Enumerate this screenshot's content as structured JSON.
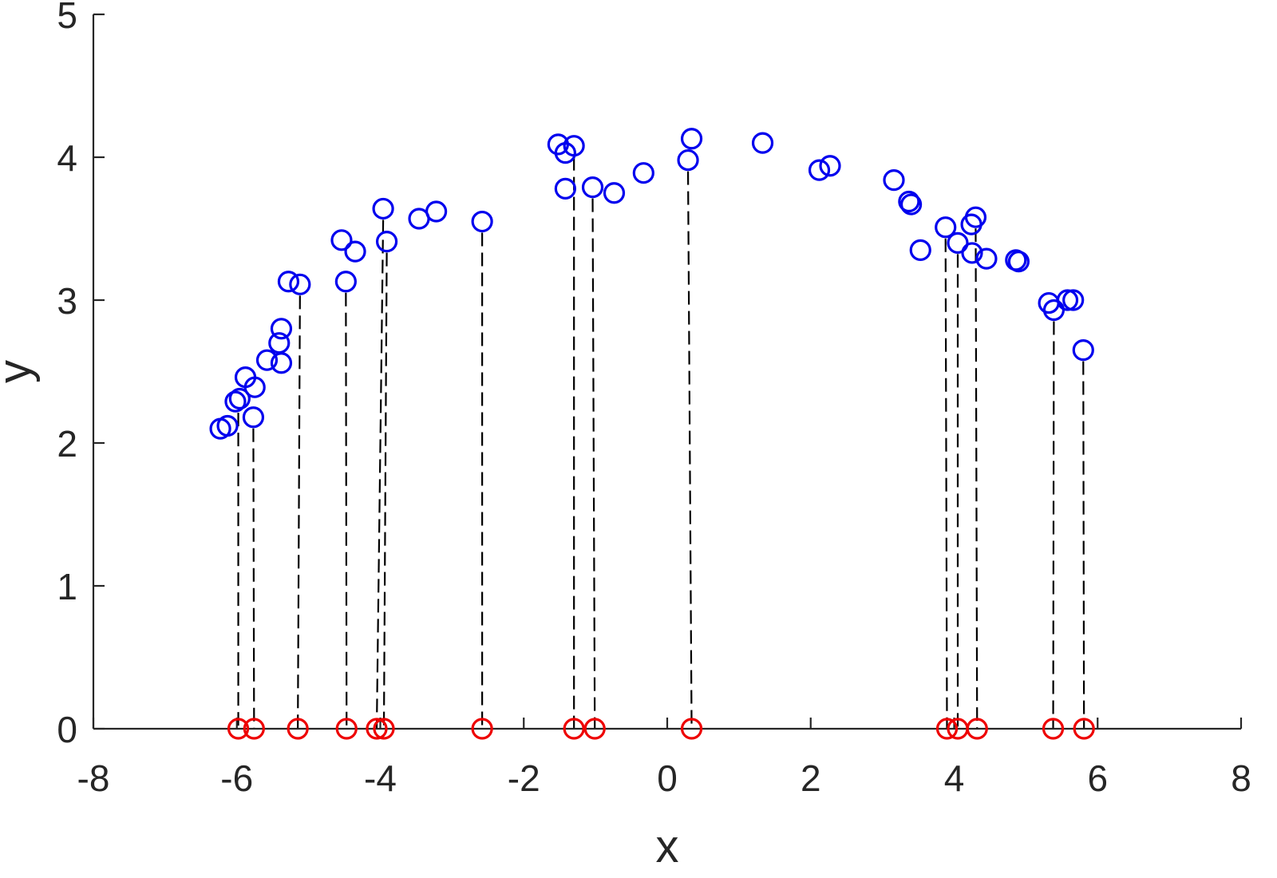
{
  "chart_data": {
    "type": "scatter",
    "title": "",
    "xlabel": "x",
    "ylabel": "y",
    "xlim": [
      -8,
      8
    ],
    "ylim": [
      0,
      5
    ],
    "xticks": [
      "-8",
      "-6",
      "-4",
      "-2",
      "0",
      "2",
      "4",
      "6",
      "8"
    ],
    "yticks": [
      "0",
      "1",
      "2",
      "3",
      "4",
      "5"
    ],
    "grid": false,
    "legend": "none",
    "series": [
      {
        "marker": "circle",
        "color": "#0000ee",
        "points": [
          [
            -6.23,
            2.1
          ],
          [
            -6.13,
            2.12
          ],
          [
            -6.02,
            2.29
          ],
          [
            -5.96,
            2.31
          ],
          [
            -5.88,
            2.46
          ],
          [
            -5.75,
            2.39
          ],
          [
            -5.77,
            2.18
          ],
          [
            -5.58,
            2.58
          ],
          [
            -5.41,
            2.7
          ],
          [
            -5.38,
            2.8
          ],
          [
            -5.38,
            2.56
          ],
          [
            -5.28,
            3.13
          ],
          [
            -5.12,
            3.11
          ],
          [
            -4.54,
            3.42
          ],
          [
            -4.48,
            3.13
          ],
          [
            -4.35,
            3.34
          ],
          [
            -3.96,
            3.64
          ],
          [
            -3.91,
            3.41
          ],
          [
            -3.46,
            3.57
          ],
          [
            -3.22,
            3.62
          ],
          [
            -2.58,
            3.55
          ],
          [
            -1.52,
            4.09
          ],
          [
            -1.42,
            4.03
          ],
          [
            -1.3,
            4.08
          ],
          [
            -1.42,
            3.78
          ],
          [
            -1.04,
            3.79
          ],
          [
            -0.74,
            3.75
          ],
          [
            -0.33,
            3.89
          ],
          [
            0.29,
            3.98
          ],
          [
            0.34,
            4.13
          ],
          [
            1.33,
            4.1
          ],
          [
            2.12,
            3.91
          ],
          [
            2.27,
            3.94
          ],
          [
            3.16,
            3.84
          ],
          [
            3.37,
            3.69
          ],
          [
            3.4,
            3.67
          ],
          [
            3.53,
            3.35
          ],
          [
            3.88,
            3.51
          ],
          [
            4.05,
            3.4
          ],
          [
            4.24,
            3.53
          ],
          [
            4.3,
            3.58
          ],
          [
            4.25,
            3.33
          ],
          [
            4.45,
            3.29
          ],
          [
            4.86,
            3.28
          ],
          [
            4.9,
            3.27
          ],
          [
            5.32,
            2.98
          ],
          [
            5.39,
            2.93
          ],
          [
            5.58,
            3.0
          ],
          [
            5.66,
            3.0
          ],
          [
            5.8,
            2.65
          ]
        ]
      },
      {
        "marker": "circle",
        "color": "#ee0000",
        "points": [
          [
            -5.98,
            0
          ],
          [
            -5.76,
            0
          ],
          [
            -5.15,
            0
          ],
          [
            -4.47,
            0
          ],
          [
            -4.05,
            0
          ],
          [
            -3.95,
            0
          ],
          [
            -2.58,
            0
          ],
          [
            -1.3,
            0
          ],
          [
            -1.01,
            0
          ],
          [
            0.34,
            0
          ],
          [
            3.9,
            0
          ],
          [
            4.05,
            0
          ],
          [
            4.32,
            0
          ],
          [
            5.38,
            0
          ],
          [
            5.81,
            0
          ]
        ]
      }
    ],
    "drop_lines": [
      {
        "x_top": -5.98,
        "y_top": 2.29,
        "x_bottom": -5.98
      },
      {
        "x_top": -5.77,
        "y_top": 2.18,
        "x_bottom": -5.76
      },
      {
        "x_top": -5.12,
        "y_top": 3.11,
        "x_bottom": -5.15
      },
      {
        "x_top": -4.48,
        "y_top": 3.13,
        "x_bottom": -4.47
      },
      {
        "x_top": -3.96,
        "y_top": 3.64,
        "x_bottom": -4.05
      },
      {
        "x_top": -3.91,
        "y_top": 3.41,
        "x_bottom": -3.95
      },
      {
        "x_top": -2.58,
        "y_top": 3.55,
        "x_bottom": -2.58
      },
      {
        "x_top": -1.3,
        "y_top": 4.08,
        "x_bottom": -1.3
      },
      {
        "x_top": -1.04,
        "y_top": 3.79,
        "x_bottom": -1.01
      },
      {
        "x_top": 0.29,
        "y_top": 3.98,
        "x_bottom": 0.34
      },
      {
        "x_top": 3.88,
        "y_top": 3.51,
        "x_bottom": 3.9
      },
      {
        "x_top": 4.05,
        "y_top": 3.4,
        "x_bottom": 4.05
      },
      {
        "x_top": 4.3,
        "y_top": 3.58,
        "x_bottom": 4.32
      },
      {
        "x_top": 5.39,
        "y_top": 2.93,
        "x_bottom": 5.38
      },
      {
        "x_top": 5.8,
        "y_top": 2.65,
        "x_bottom": 5.81
      }
    ]
  }
}
